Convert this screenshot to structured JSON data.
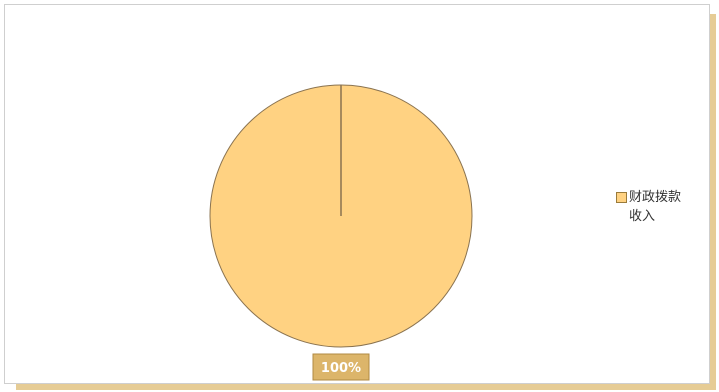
{
  "chart_data": {
    "type": "pie",
    "categories": [
      "财政拨款收入"
    ],
    "values": [
      100
    ],
    "value_labels": [
      "100%"
    ],
    "colors": [
      "#ffd282"
    ],
    "legend": "right"
  }
}
